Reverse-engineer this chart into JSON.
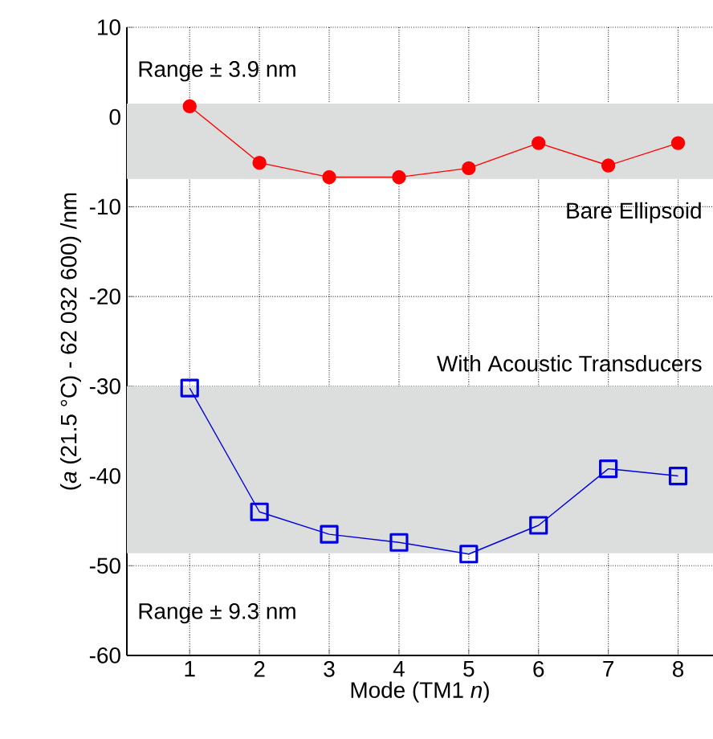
{
  "chart_data": {
    "type": "line",
    "xlabel": "Mode (TM1 *n*)",
    "ylabel": "(*a* (21.5 °C) - 62 032 600) /nm",
    "x": [
      1,
      2,
      3,
      4,
      5,
      6,
      7,
      8
    ],
    "series": [
      {
        "color": "#ff0000",
        "marker": "circle",
        "values": [
          1.2,
          -5.1,
          -6.7,
          -6.7,
          -5.7,
          -2.9,
          -5.4,
          -2.9
        ]
      },
      {
        "color": "#0000dd",
        "marker": "square",
        "values": [
          -30.2,
          -44.0,
          -46.5,
          -47.4,
          -48.7,
          -45.5,
          -39.2,
          -40.0
        ]
      }
    ],
    "bands": [
      {
        "axis": "y",
        "from": -6.9,
        "to": 1.5,
        "color": "#dcdddd"
      },
      {
        "axis": "y",
        "from": -48.6,
        "to": -30,
        "color": "#dcdddd"
      }
    ],
    "annotations": [
      "Range ± 3.9 nm",
      "Bare Ellipsoid",
      "With Acoustic Transducers",
      "Range ± 9.3 nm"
    ],
    "xlim": [
      0.1,
      8.5
    ],
    "ylim": [
      -60,
      10
    ],
    "xticks": [
      1,
      2,
      3,
      4,
      5,
      6,
      7,
      8
    ],
    "yticks": [
      -60,
      -50,
      -40,
      -30,
      -20,
      -10,
      0,
      10
    ],
    "grid": true,
    "line_style": "solid"
  }
}
